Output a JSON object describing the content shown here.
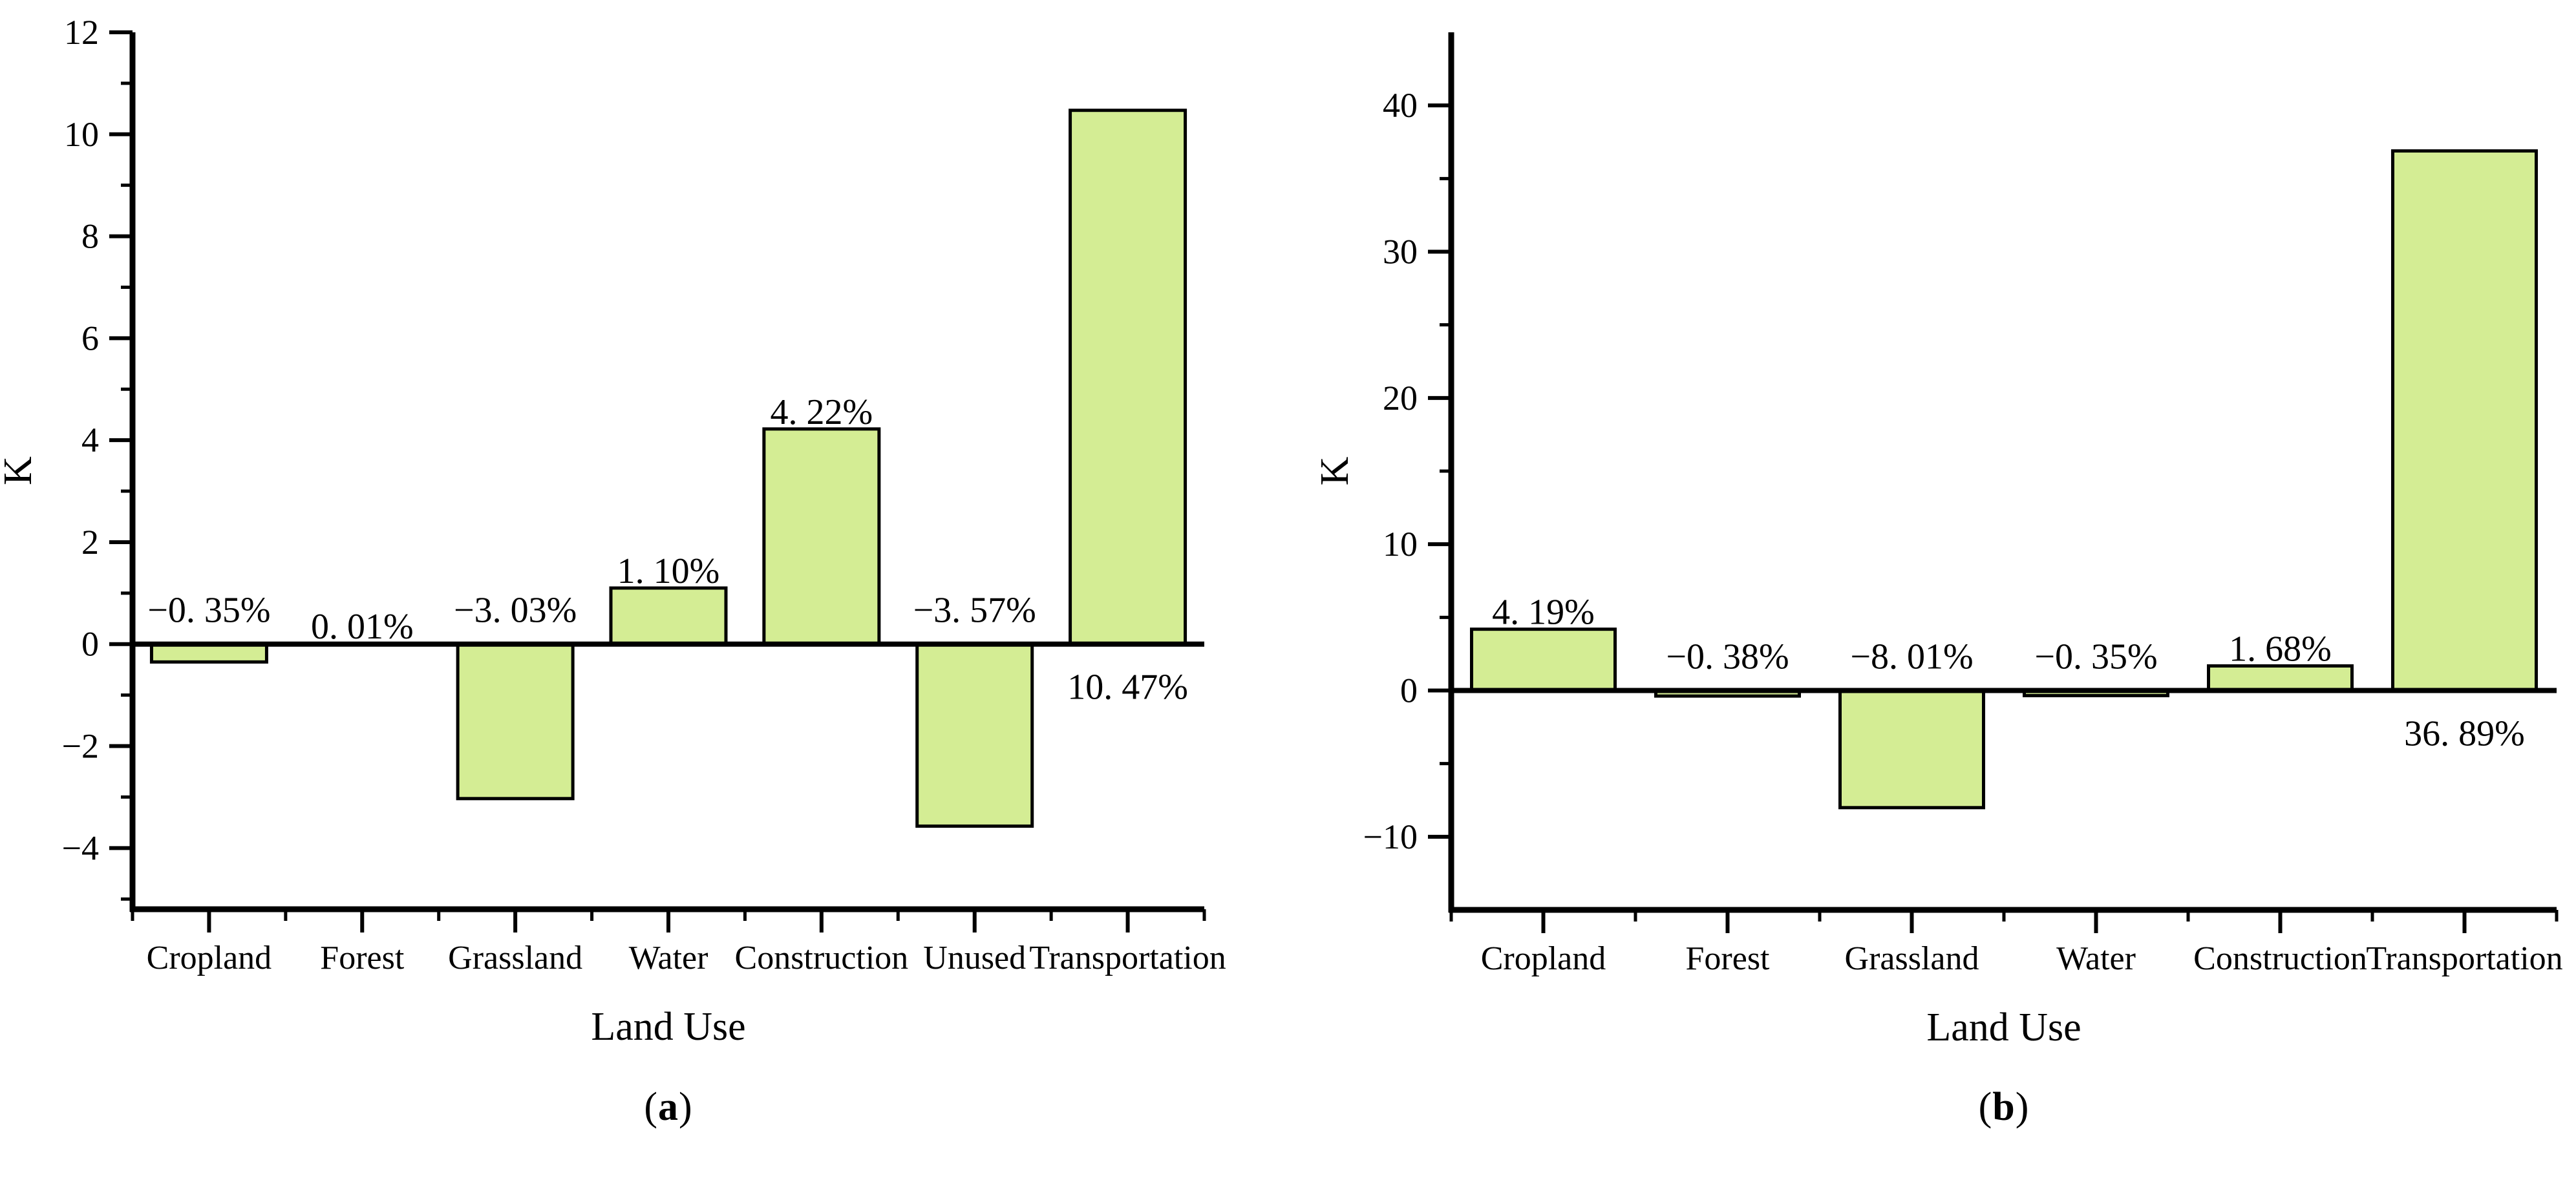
{
  "figure": {
    "background": "#ffffff",
    "text_color": "#000000"
  },
  "chart_data": [
    {
      "type": "bar",
      "panel_label": {
        "open": "(",
        "letter": "a",
        "close": ")"
      },
      "xlabel": "Land Use",
      "ylabel": "K",
      "categories": [
        "Cropland",
        "Forest",
        "Grassland",
        "Water",
        "Construction",
        "Unused",
        "Transportation"
      ],
      "values": [
        -0.35,
        0.01,
        -3.03,
        1.1,
        4.22,
        -3.57,
        10.47
      ],
      "value_labels": [
        "−0. 35%",
        "0. 01%",
        "−3. 03%",
        "1. 10%",
        "4. 22%",
        "−3. 57%",
        "10. 47%"
      ],
      "label_below_axis": [
        false,
        false,
        false,
        false,
        false,
        false,
        true
      ],
      "ylim": [
        -5.2,
        12
      ],
      "y_major_ticks": [
        {
          "v": 12,
          "label": "12"
        },
        {
          "v": 10,
          "label": "10"
        },
        {
          "v": 8,
          "label": "8"
        },
        {
          "v": 6,
          "label": "6"
        },
        {
          "v": 4,
          "label": "4"
        },
        {
          "v": 2,
          "label": "2"
        },
        {
          "v": 0,
          "label": "0"
        },
        {
          "v": -2,
          "label": "−2"
        },
        {
          "v": -4,
          "label": "−4"
        }
      ],
      "y_minor_ticks": [
        11,
        9,
        7,
        5,
        3,
        1,
        -1,
        -3,
        -5
      ],
      "bar_fill": "#d4ed94",
      "bar_stroke": "#000000",
      "grid": false,
      "legend": null
    },
    {
      "type": "bar",
      "panel_label": {
        "open": "(",
        "letter": "b",
        "close": ")"
      },
      "xlabel": "Land Use",
      "ylabel": "K",
      "categories": [
        "Cropland",
        "Forest",
        "Grassland",
        "Water",
        "Construction",
        "Transportation"
      ],
      "values": [
        4.19,
        -0.38,
        -8.01,
        -0.35,
        1.68,
        36.89
      ],
      "value_labels": [
        "4. 19%",
        "−0. 38%",
        "−8. 01%",
        "−0. 35%",
        "1. 68%",
        "36. 89%"
      ],
      "label_below_axis": [
        false,
        false,
        false,
        false,
        false,
        true
      ],
      "ylim": [
        -15,
        45
      ],
      "y_major_ticks": [
        {
          "v": 40,
          "label": "40"
        },
        {
          "v": 30,
          "label": "30"
        },
        {
          "v": 20,
          "label": "20"
        },
        {
          "v": 10,
          "label": "10"
        },
        {
          "v": 0,
          "label": "0"
        },
        {
          "v": -10,
          "label": "−10"
        }
      ],
      "y_minor_ticks": [
        35,
        25,
        15,
        5,
        -5
      ],
      "bar_fill": "#d4ed94",
      "bar_stroke": "#000000",
      "grid": false,
      "legend": null
    }
  ]
}
